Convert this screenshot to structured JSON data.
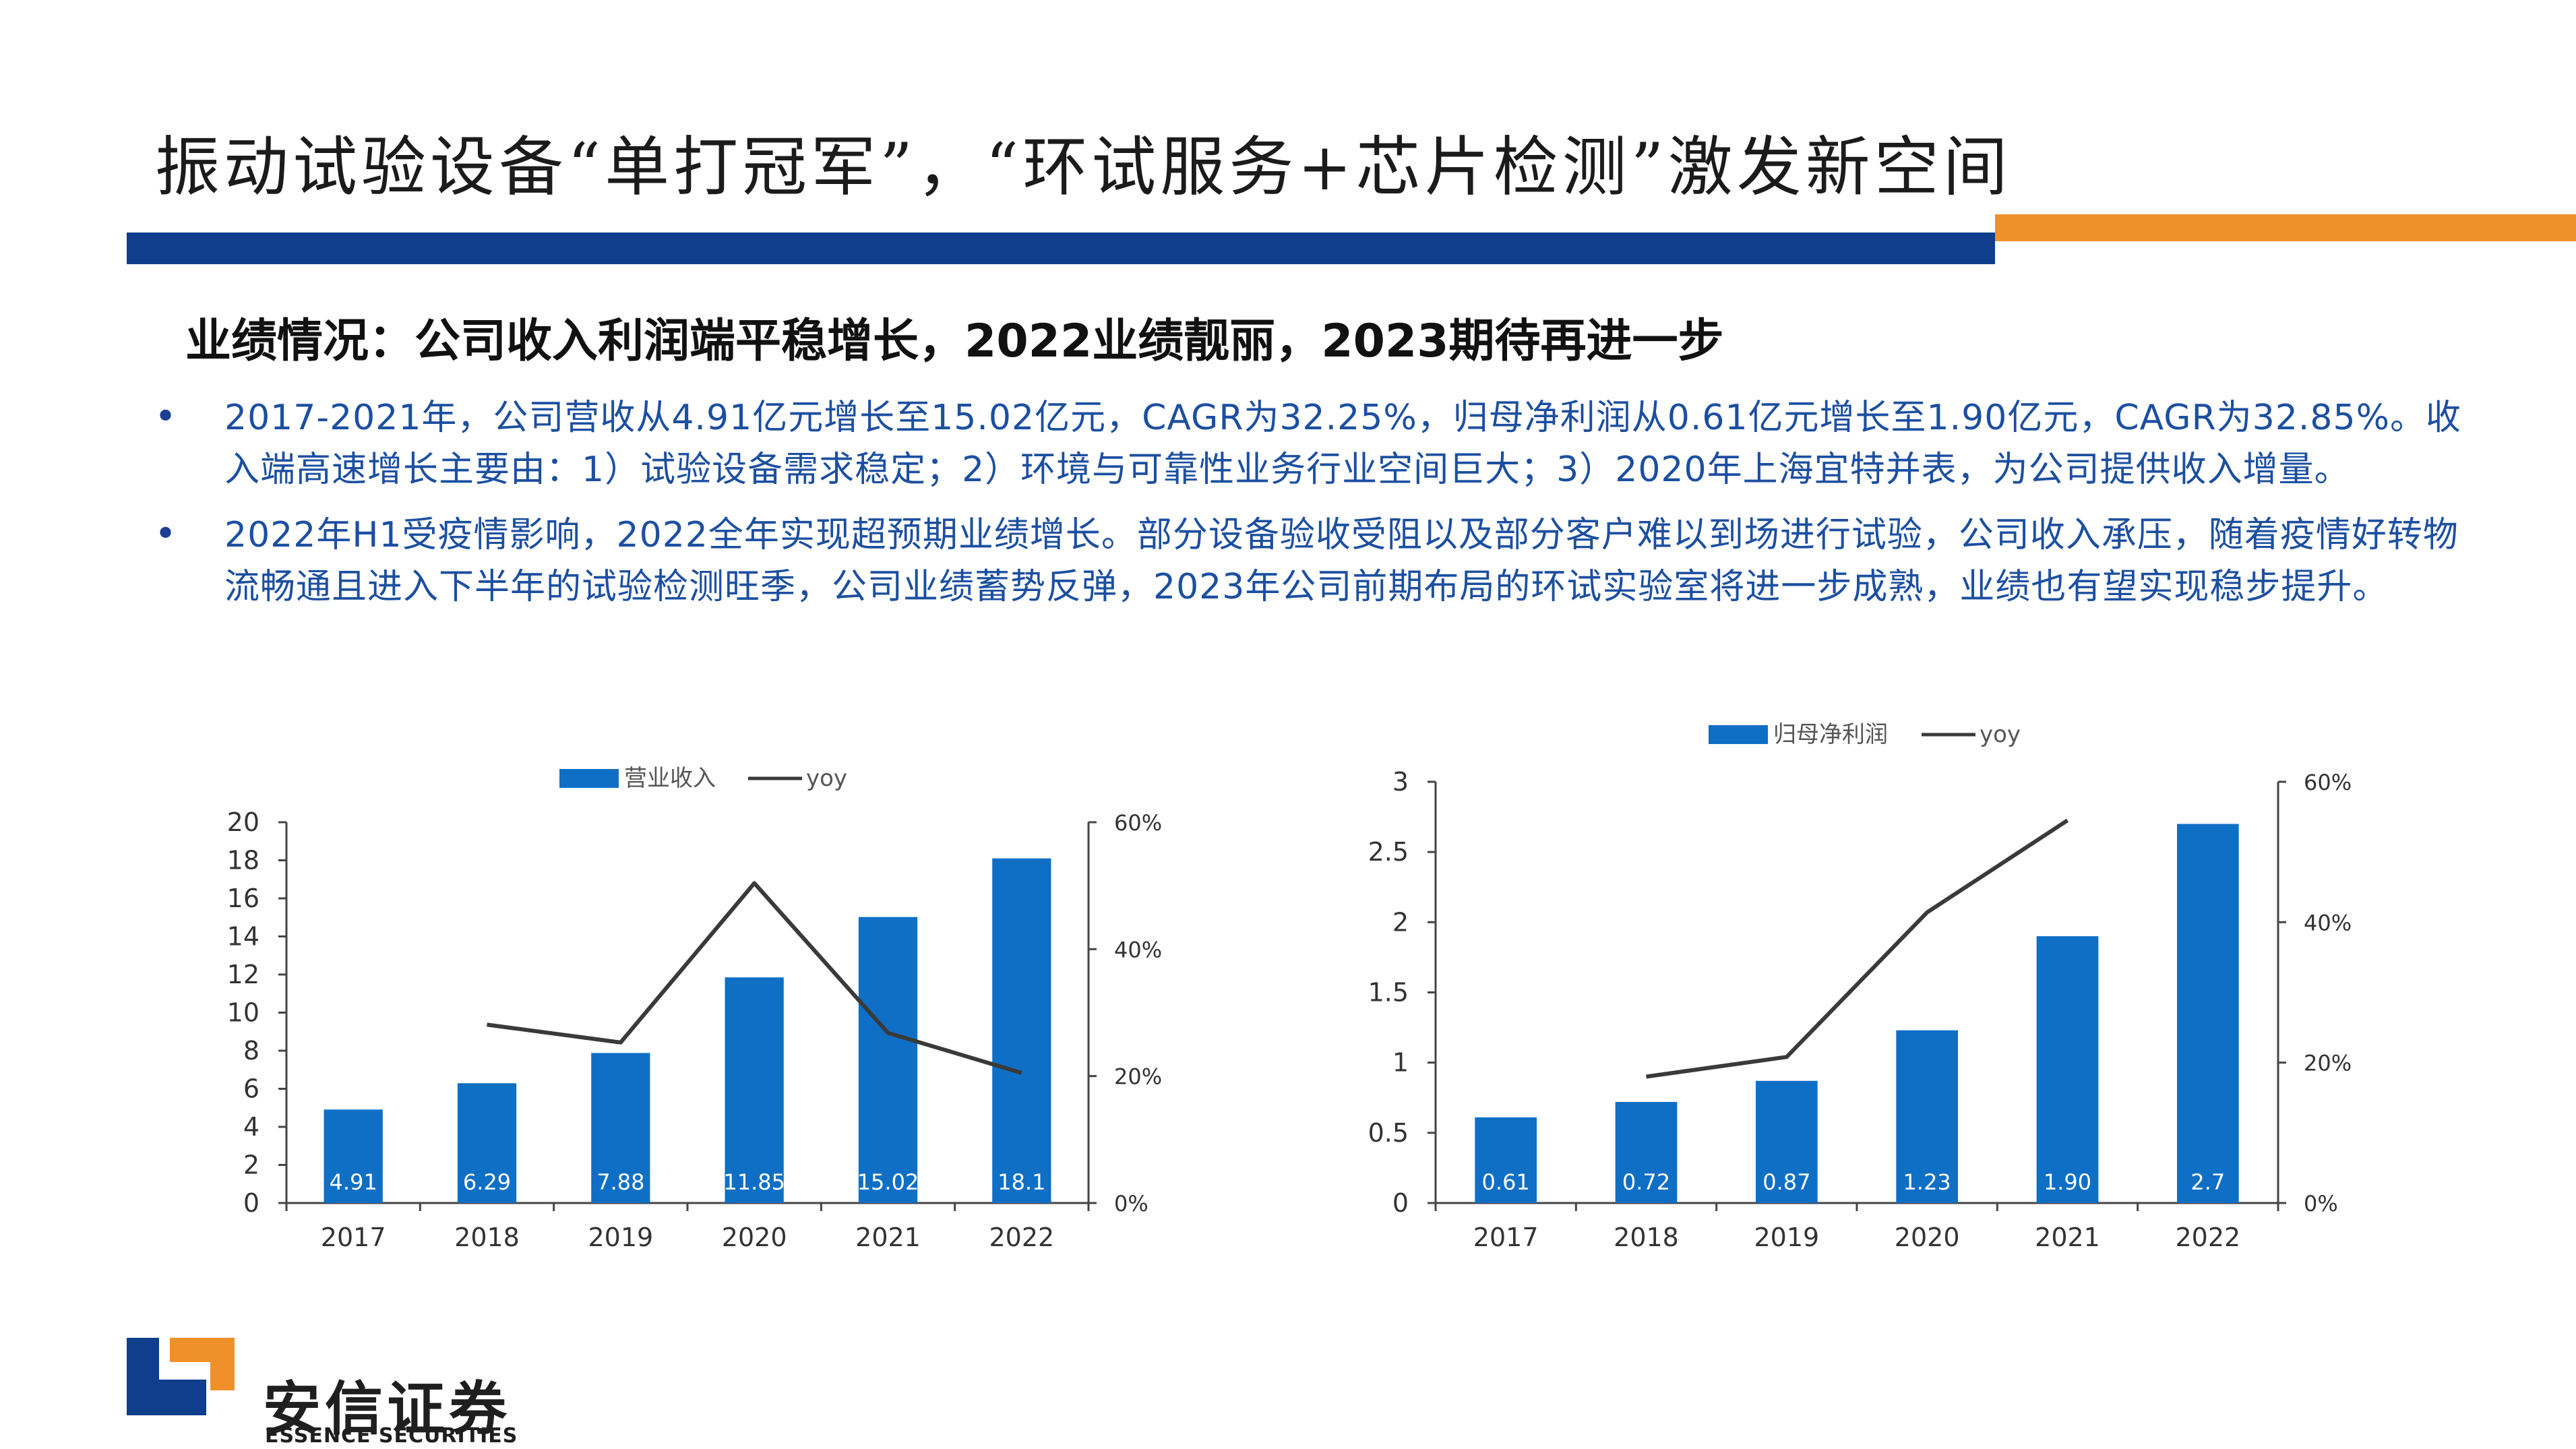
{
  "title": "振动试验设备“单打冠军”，“环试服务+芯片检测”激发新空间",
  "subtitle": "业绩情况：公司收入利润端平稳增长，2022业绩靓丽，2023期待再进一步",
  "bullets": [
    "2017-2021年，公司营收从4.91亿元增长至15.02亿元，CAGR为32.25%，归母净利润从0.61亿元增长至1.90亿元，CAGR为32.85%。收入端高速增长主要由：1）试验设备需求稳定；2）环境与可靠性业务行业空间巨大；3）2020年上海宜特并表，为公司提供收入增量。",
    "2022年H1受疫情影响，2022全年实现超预期业绩增长。部分设备验收受阻以及部分客户难以到场进行试验，公司收入承压，随着疫情好转物流畅通且进入下半年的试验检测旺季，公司业绩蓄势反弹，2023年公司前期布局的环试实验室将进一步成熟，业绩也有望实现稳步提升。"
  ],
  "brand": {
    "cn": "安信证券",
    "en": "ESSENCE SECURITIES"
  },
  "colors": {
    "bar": "#0e6fc5",
    "line": "#3a3a3a",
    "title_bar": "#0e3e8c",
    "accent": "#f0902a",
    "bullet_text": "#1c4fa0"
  },
  "chart_data": [
    {
      "type": "bar",
      "categories": [
        "2017",
        "2018",
        "2019",
        "2020",
        "2021",
        "2022"
      ],
      "series": [
        {
          "name": "营业收入",
          "type": "bar",
          "axis": "left",
          "values": [
            4.91,
            6.29,
            7.88,
            11.85,
            15.02,
            18.1
          ]
        },
        {
          "name": "yoy",
          "type": "line",
          "axis": "right",
          "values": [
            null,
            28.1,
            25.3,
            50.4,
            26.8,
            20.5
          ]
        }
      ],
      "data_labels": [
        "4.91",
        "6.29",
        "7.88",
        "11.85",
        "15.02",
        "18.1"
      ],
      "y_ticks": [
        "0",
        "2",
        "4",
        "6",
        "8",
        "10",
        "12",
        "14",
        "16",
        "18",
        "20"
      ],
      "y_right_ticks": [
        "0%",
        "20%",
        "40%",
        "60%"
      ],
      "ylim": [
        0,
        20
      ],
      "y2lim": [
        0,
        60
      ],
      "legend_position": "top",
      "grid": false
    },
    {
      "type": "bar",
      "categories": [
        "2017",
        "2018",
        "2019",
        "2020",
        "2021",
        "2022"
      ],
      "series": [
        {
          "name": "归母净利润",
          "type": "bar",
          "axis": "left",
          "values": [
            0.61,
            0.72,
            0.87,
            1.23,
            1.9,
            2.7
          ]
        },
        {
          "name": "yoy",
          "type": "line",
          "axis": "right",
          "values": [
            null,
            18.0,
            20.8,
            41.4,
            54.5,
            null
          ]
        }
      ],
      "data_labels": [
        "0.61",
        "0.72",
        "0.87",
        "1.23",
        "1.90",
        "2.7"
      ],
      "y_ticks": [
        "0",
        "0.5",
        "1",
        "1.5",
        "2",
        "2.5",
        "3"
      ],
      "y_right_ticks": [
        "0%",
        "20%",
        "40%",
        "60%"
      ],
      "ylim": [
        0,
        3
      ],
      "y2lim": [
        0,
        60
      ],
      "legend_position": "top",
      "grid": false
    }
  ]
}
